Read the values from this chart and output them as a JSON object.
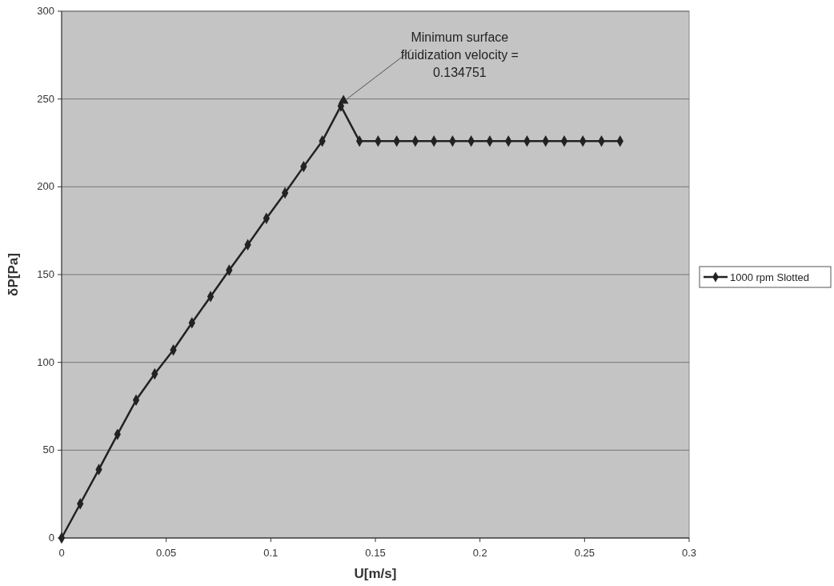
{
  "chart_data": {
    "type": "line",
    "xlabel": "U[m/s]",
    "ylabel": "δP[Pa]",
    "x": [
      0,
      0.0089,
      0.0178,
      0.0267,
      0.0356,
      0.0445,
      0.0534,
      0.0623,
      0.0712,
      0.0801,
      0.089,
      0.0979,
      0.1068,
      0.1157,
      0.1246,
      0.1335,
      0.1424,
      0.1513,
      0.1602,
      0.1691,
      0.178,
      0.1869,
      0.1958,
      0.2047,
      0.2136,
      0.2225,
      0.2314,
      0.2403,
      0.2492,
      0.2581,
      0.267
    ],
    "series": [
      {
        "name": "1000 rpm Slotted",
        "color": "#222222",
        "marker": "diamond",
        "values": [
          0,
          19.5,
          39,
          59,
          78.5,
          93.5,
          107,
          122.5,
          137.5,
          152.5,
          167,
          182,
          196.5,
          211.5,
          226,
          246,
          226,
          226,
          226,
          226,
          226,
          226,
          226,
          226,
          226,
          226,
          226,
          226,
          226,
          226,
          226
        ]
      },
      {
        "type": "scatter",
        "color": "#222222",
        "marker": "triangle",
        "x": [
          0.134751
        ],
        "values": [
          249
        ]
      }
    ],
    "annotations": [
      {
        "text": "Minimum surface fluidization velocity = 0.134751",
        "x": 0.134751,
        "y": 249
      }
    ],
    "xlim": [
      0,
      0.3
    ],
    "xticks": [
      0,
      0.05,
      0.1,
      0.15,
      0.2,
      0.25,
      0.3
    ],
    "ylim": [
      0,
      300
    ],
    "yticks": [
      0,
      50,
      100,
      150,
      200,
      250,
      300
    ],
    "grid": "y",
    "legend": "right"
  }
}
